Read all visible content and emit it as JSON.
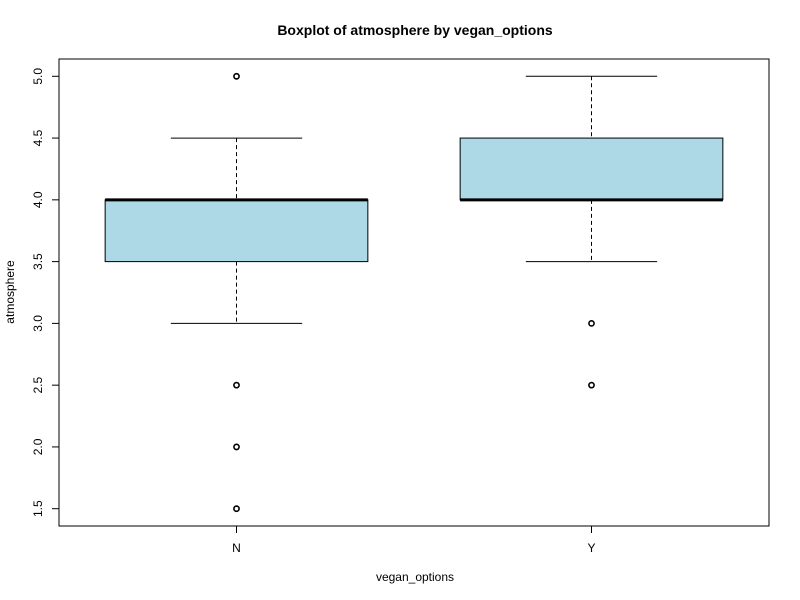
{
  "chart_data": {
    "type": "boxplot",
    "title": "Boxplot of atmosphere by vegan_options",
    "xlabel": "vegan_options",
    "ylabel": "atmosphere",
    "ylim": [
      1.36,
      5.14
    ],
    "yticks": [
      1.5,
      2.0,
      2.5,
      3.0,
      3.5,
      4.0,
      4.5,
      5.0
    ],
    "ytick_labels": [
      "1.5",
      "2.0",
      "2.5",
      "3.0",
      "3.5",
      "4.0",
      "4.5",
      "5.0"
    ],
    "grid": false,
    "box_color": "#add8e6",
    "categories": [
      "N",
      "Y"
    ],
    "boxes": [
      {
        "category": "N",
        "whisker_low": 3.0,
        "q1": 3.5,
        "median": 4.0,
        "q3": 4.0,
        "whisker_high": 4.5,
        "outliers": [
          5.0,
          2.5,
          2.0,
          1.5
        ]
      },
      {
        "category": "Y",
        "whisker_low": 3.5,
        "q1": 4.0,
        "median": 4.0,
        "q3": 4.5,
        "whisker_high": 5.0,
        "outliers": [
          3.0,
          2.5
        ]
      }
    ]
  }
}
